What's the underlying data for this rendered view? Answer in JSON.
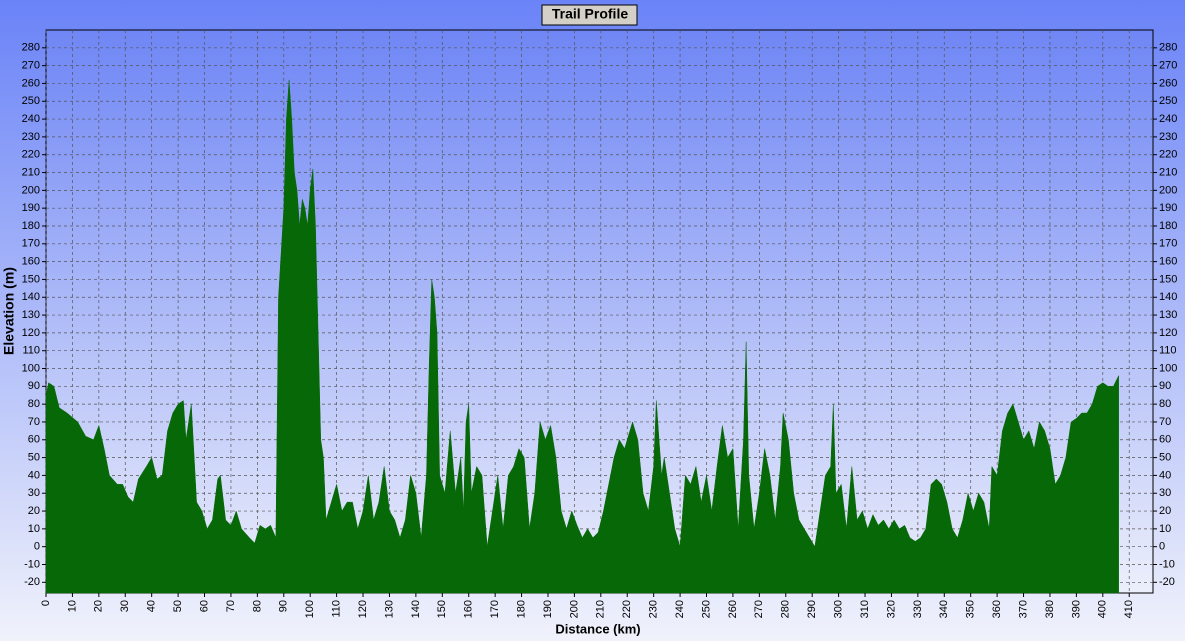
{
  "chart_data": {
    "type": "area",
    "title": "Trail Profile",
    "xlabel": "Distance (km)",
    "ylabel": "Elevation (m)",
    "color": "#066806",
    "grid": true,
    "xlim": [
      0,
      419
    ],
    "ylim": [
      -26,
      290
    ],
    "xticks": [
      0,
      10,
      20,
      30,
      40,
      50,
      60,
      70,
      80,
      90,
      100,
      110,
      120,
      130,
      140,
      150,
      160,
      170,
      180,
      190,
      200,
      210,
      220,
      230,
      240,
      250,
      260,
      270,
      280,
      290,
      300,
      310,
      320,
      330,
      340,
      350,
      360,
      370,
      380,
      390,
      400,
      410
    ],
    "yticks": [
      -20,
      -10,
      0,
      10,
      20,
      30,
      40,
      50,
      60,
      70,
      80,
      90,
      100,
      110,
      120,
      130,
      140,
      150,
      160,
      170,
      180,
      190,
      200,
      210,
      220,
      230,
      240,
      250,
      260,
      270,
      280
    ],
    "x": [
      0,
      1,
      3,
      5,
      8,
      12,
      15,
      18,
      20,
      22,
      24,
      27,
      29,
      31,
      33,
      35,
      38,
      40,
      42,
      44,
      46,
      48,
      50,
      52,
      53,
      55,
      57,
      59,
      61,
      63,
      65,
      66,
      68,
      70,
      72,
      74,
      77,
      79,
      81,
      83,
      85,
      87,
      88,
      90,
      91,
      92,
      93,
      94,
      95,
      96,
      97,
      98,
      99,
      100,
      101,
      102,
      103,
      104,
      105,
      106,
      108,
      110,
      112,
      114,
      116,
      118,
      120,
      122,
      124,
      126,
      128,
      130,
      132,
      134,
      136,
      138,
      140,
      142,
      144,
      145,
      146,
      147,
      148,
      149,
      151,
      153,
      155,
      157,
      158,
      159,
      160,
      161,
      163,
      165,
      167,
      169,
      171,
      173,
      175,
      177,
      179,
      181,
      183,
      185,
      187,
      189,
      191,
      193,
      195,
      197,
      199,
      201,
      203,
      205,
      207,
      209,
      211,
      213,
      215,
      217,
      219,
      221,
      222,
      224,
      226,
      228,
      230,
      231,
      233,
      234,
      236,
      238,
      240,
      242,
      244,
      246,
      248,
      250,
      252,
      254,
      256,
      258,
      260,
      262,
      264,
      265,
      266,
      268,
      270,
      272,
      274,
      276,
      278,
      279,
      281,
      283,
      285,
      287,
      289,
      291,
      293,
      295,
      297,
      298,
      299,
      301,
      303,
      305,
      307,
      309,
      311,
      313,
      315,
      317,
      319,
      321,
      323,
      325,
      327,
      329,
      331,
      333,
      335,
      337,
      339,
      341,
      343,
      345,
      347,
      349,
      351,
      353,
      355,
      357,
      358,
      360,
      362,
      364,
      366,
      368,
      370,
      372,
      374,
      376,
      378,
      380,
      382,
      384,
      386,
      388,
      390,
      392,
      394,
      396,
      398,
      400,
      402,
      404,
      406
    ],
    "values": [
      85,
      92,
      90,
      78,
      75,
      70,
      62,
      60,
      68,
      55,
      40,
      35,
      35,
      28,
      25,
      38,
      45,
      50,
      38,
      40,
      65,
      75,
      80,
      82,
      60,
      80,
      25,
      20,
      10,
      15,
      38,
      40,
      15,
      12,
      20,
      10,
      5,
      2,
      12,
      10,
      12,
      5,
      140,
      190,
      240,
      262,
      240,
      210,
      200,
      180,
      195,
      190,
      180,
      200,
      212,
      180,
      120,
      60,
      50,
      15,
      25,
      35,
      20,
      25,
      25,
      10,
      20,
      40,
      15,
      25,
      45,
      20,
      15,
      5,
      15,
      40,
      30,
      5,
      40,
      100,
      150,
      140,
      120,
      40,
      30,
      65,
      30,
      50,
      20,
      70,
      80,
      30,
      45,
      40,
      0,
      20,
      40,
      10,
      40,
      45,
      55,
      50,
      10,
      30,
      70,
      60,
      68,
      50,
      20,
      10,
      20,
      12,
      5,
      10,
      5,
      8,
      20,
      35,
      50,
      60,
      55,
      65,
      70,
      60,
      30,
      20,
      45,
      82,
      40,
      50,
      30,
      10,
      0,
      40,
      35,
      45,
      25,
      40,
      20,
      45,
      68,
      50,
      55,
      10,
      60,
      115,
      40,
      10,
      30,
      55,
      40,
      15,
      45,
      75,
      60,
      30,
      15,
      10,
      5,
      0,
      20,
      40,
      45,
      80,
      30,
      35,
      10,
      45,
      15,
      20,
      10,
      18,
      12,
      15,
      10,
      15,
      10,
      12,
      5,
      3,
      5,
      10,
      35,
      38,
      35,
      25,
      10,
      5,
      15,
      30,
      20,
      30,
      25,
      10,
      45,
      40,
      65,
      75,
      80,
      70,
      60,
      65,
      55,
      70,
      65,
      55,
      35,
      40,
      50,
      70,
      72,
      75,
      75,
      80,
      90,
      92,
      90,
      90,
      96
    ]
  }
}
